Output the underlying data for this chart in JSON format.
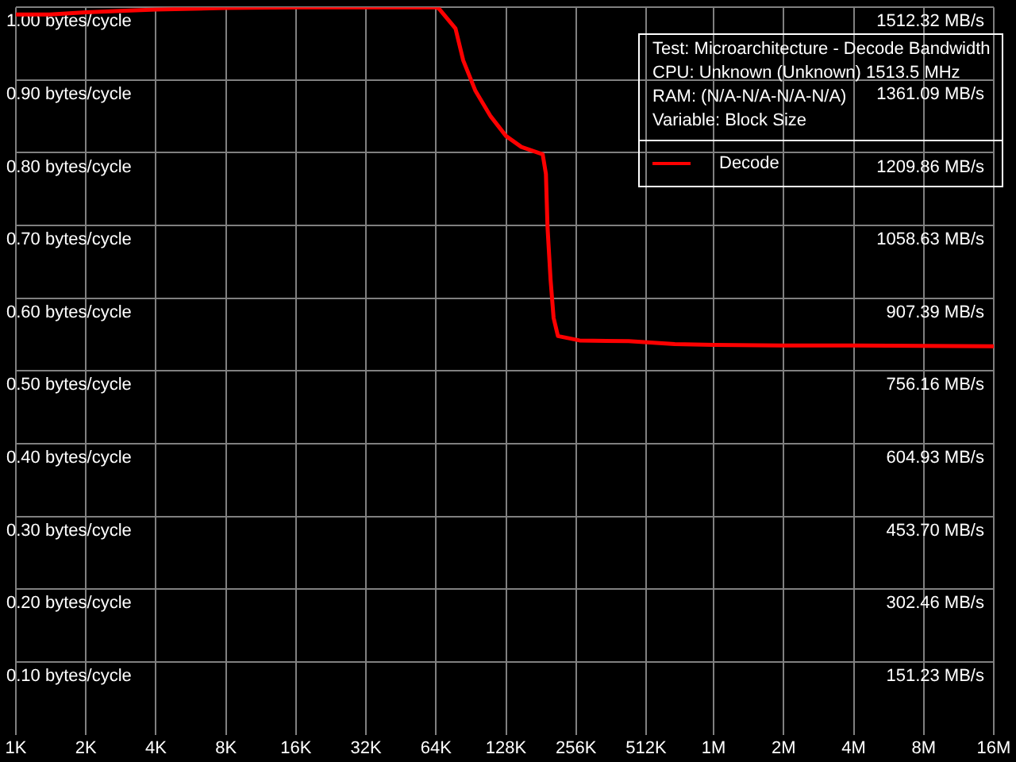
{
  "chart_data": {
    "type": "line",
    "annotations": [
      "Test: Microarchitecture - Decode Bandwidth",
      "CPU: Unknown (Unknown) 1513.5 MHz",
      "RAM:  (N/A-N/A-N/A-N/A)",
      "Variable: Block Size"
    ],
    "x": [
      1000,
      1400,
      2000,
      2800,
      4000,
      8000,
      16000,
      32000,
      64000,
      66000,
      77600,
      83800,
      94600,
      110000,
      128000,
      149000,
      184000,
      190000,
      193000,
      199000,
      205000,
      214000,
      265000,
      431000,
      680000,
      1000000,
      1960000,
      4000000,
      16000000
    ],
    "series": [
      {
        "name": "Decode",
        "color": "#ff0000",
        "values": [
          0.99,
          0.99,
          0.993,
          0.995,
          0.997,
          0.999,
          1.0,
          1.0,
          1.0,
          0.998,
          0.971,
          0.927,
          0.885,
          0.85,
          0.823,
          0.808,
          0.798,
          0.771,
          0.698,
          0.625,
          0.573,
          0.548,
          0.542,
          0.541,
          0.537,
          0.536,
          0.535,
          0.535,
          0.534
        ]
      }
    ],
    "log": "x",
    "xlim": [
      1000,
      16000000
    ],
    "xticks": [
      {
        "value": 1000,
        "label": "1K"
      },
      {
        "value": 2000,
        "label": "2K"
      },
      {
        "value": 4000,
        "label": "4K"
      },
      {
        "value": 8000,
        "label": "8K"
      },
      {
        "value": 16000,
        "label": "16K"
      },
      {
        "value": 32000,
        "label": "32K"
      },
      {
        "value": 64000,
        "label": "64K"
      },
      {
        "value": 128000,
        "label": "128K"
      },
      {
        "value": 256000,
        "label": "256K"
      },
      {
        "value": 512000,
        "label": "512K"
      },
      {
        "value": 1000000,
        "label": "1M"
      },
      {
        "value": 2000000,
        "label": "2M"
      },
      {
        "value": 4000000,
        "label": "4M"
      },
      {
        "value": 8000000,
        "label": "8M"
      },
      {
        "value": 16000000,
        "label": "16M"
      }
    ],
    "ylim": [
      0,
      1
    ],
    "yticks": [
      {
        "value": 0.1,
        "label": "0.10 bytes/cycle"
      },
      {
        "value": 0.2,
        "label": "0.20 bytes/cycle"
      },
      {
        "value": 0.3,
        "label": "0.30 bytes/cycle"
      },
      {
        "value": 0.4,
        "label": "0.40 bytes/cycle"
      },
      {
        "value": 0.5,
        "label": "0.50 bytes/cycle"
      },
      {
        "value": 0.6,
        "label": "0.60 bytes/cycle"
      },
      {
        "value": 0.7,
        "label": "0.70 bytes/cycle"
      },
      {
        "value": 0.8,
        "label": "0.80 bytes/cycle"
      },
      {
        "value": 0.9,
        "label": "0.90 bytes/cycle"
      },
      {
        "value": 1,
        "label": "1.00 bytes/cycle"
      }
    ],
    "y2lim": [
      0,
      1512.32
    ],
    "y2ticks": [
      {
        "value": 151.23,
        "label": "151.23 MB/s"
      },
      {
        "value": 302.46,
        "label": "302.46 MB/s"
      },
      {
        "value": 453.7,
        "label": "453.70 MB/s"
      },
      {
        "value": 604.93,
        "label": "604.93 MB/s"
      },
      {
        "value": 756.16,
        "label": "756.16 MB/s"
      },
      {
        "value": 907.39,
        "label": "907.39 MB/s"
      },
      {
        "value": 1058.63,
        "label": "1058.63 MB/s"
      },
      {
        "value": 1209.86,
        "label": "1209.86 MB/s"
      },
      {
        "value": 1361.09,
        "label": "1361.09 MB/s"
      },
      {
        "value": 1512.32,
        "label": "1512.32 MB/s"
      }
    ],
    "grid": true,
    "legend": "top right",
    "line_style": "solid",
    "marker": "none"
  }
}
